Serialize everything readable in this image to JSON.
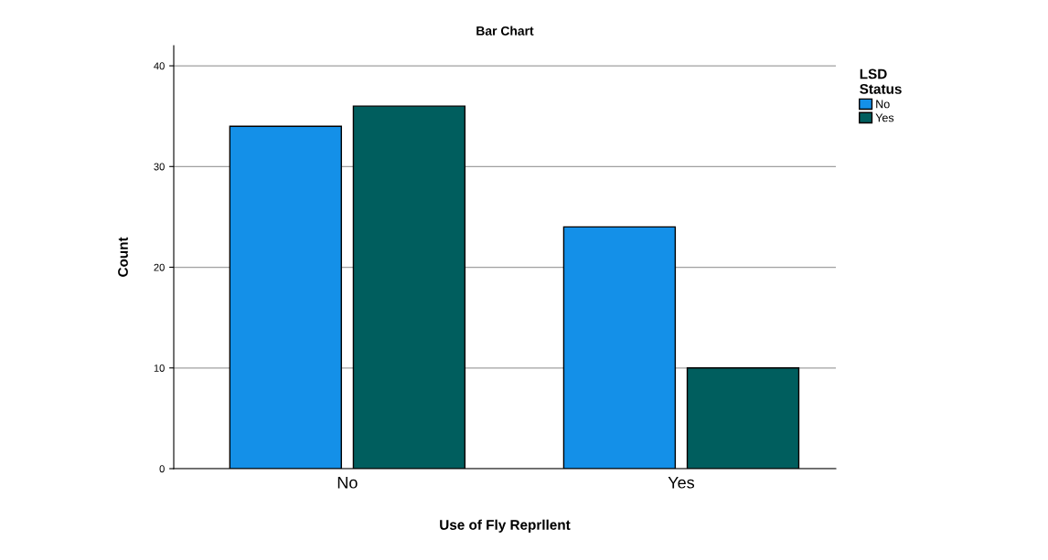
{
  "chart_data": {
    "type": "bar",
    "title": "Bar Chart",
    "xlabel": "Use of Fly Reprllent",
    "ylabel": "Count",
    "legend_title": "LSD\nStatus",
    "categories": [
      "No",
      "Yes"
    ],
    "series": [
      {
        "name": "No",
        "color": "#1490e8",
        "values": [
          34,
          24
        ]
      },
      {
        "name": "Yes",
        "color": "#005e5e",
        "values": [
          36,
          10
        ]
      }
    ],
    "ylim": [
      0,
      42
    ],
    "yticks": [
      0,
      10,
      20,
      30,
      40
    ],
    "grid": "y",
    "legend": "top right"
  }
}
